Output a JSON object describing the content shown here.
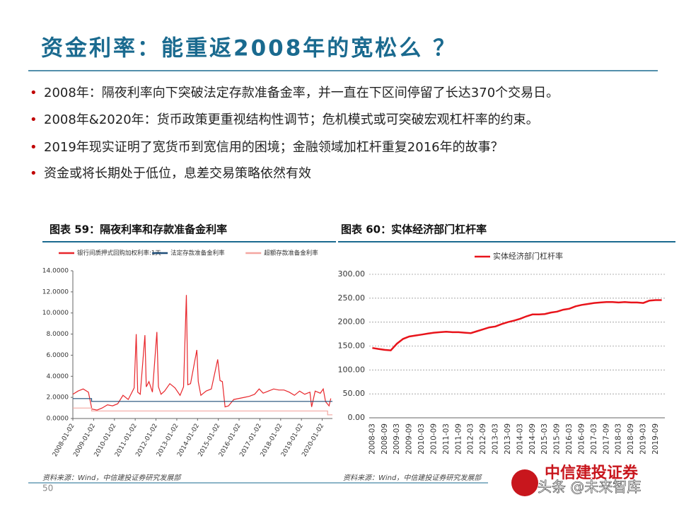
{
  "title": "资金利率：能重返2008年的宽松么 ？",
  "bullets": [
    "2008年：隔夜利率向下突破法定存款准备金率，并一直在下区间停留了长达370个交易日。",
    "2008年&2020年：货币政策更重视结构性调节；危机模式或可突破宏观杠杆率的约束。",
    "2019年现实证明了宽货币到宽信用的困境；金融领域加杠杆重复2016年的故事？",
    "资金或将长期处于低位，息差交易策略依然有效"
  ],
  "page_number": "50",
  "logo": "中信建投证券",
  "watermark": "头条 @未来智库",
  "chart_data": [
    {
      "type": "line",
      "title": "图表 59：隔夜利率和存款准备金利率",
      "source": "资料来源：Wind，中信建投证券研究发展部",
      "legend": "top",
      "grid": false,
      "xlim": [
        "2008-01-02",
        "2020-06-30"
      ],
      "xticks": [
        "2008-01-02",
        "2009-01-02",
        "2010-01-02",
        "2011-01-02",
        "2012-01-02",
        "2013-01-02",
        "2014-01-02",
        "2015-01-02",
        "2016-01-02",
        "2017-01-02",
        "2018-01-02",
        "2019-01-02",
        "2020-01-02"
      ],
      "ylim": [
        0,
        14
      ],
      "yticks": [
        {
          "value": 0,
          "label": "0.0000"
        },
        {
          "value": 2,
          "label": "2.0000"
        },
        {
          "value": 4,
          "label": "4.0000"
        },
        {
          "value": 6,
          "label": "6.0000"
        },
        {
          "value": 8,
          "label": "8.0000"
        },
        {
          "value": 10,
          "label": "10.0000"
        },
        {
          "value": 12,
          "label": "12.0000"
        },
        {
          "value": 14,
          "label": "14.0000"
        }
      ],
      "series": [
        {
          "name": "银行间质押式回购加权利率:1天",
          "color": "#e8262b",
          "x": [
            "2008-01-02",
            "2008-04-01",
            "2008-07-01",
            "2008-10-01",
            "2008-12-01",
            "2009-03-02",
            "2009-06-01",
            "2009-09-01",
            "2009-12-01",
            "2010-03-01",
            "2010-06-01",
            "2010-09-01",
            "2010-12-15",
            "2011-01-20",
            "2011-02-15",
            "2011-04-01",
            "2011-06-22",
            "2011-07-15",
            "2011-09-01",
            "2011-11-01",
            "2012-01-18",
            "2012-02-15",
            "2012-04-01",
            "2012-06-01",
            "2012-09-01",
            "2012-12-01",
            "2013-03-01",
            "2013-05-01",
            "2013-06-20",
            "2013-07-15",
            "2013-09-01",
            "2013-12-20",
            "2014-01-15",
            "2014-03-01",
            "2014-06-01",
            "2014-09-01",
            "2014-12-22",
            "2015-02-01",
            "2015-03-15",
            "2015-05-01",
            "2015-07-01",
            "2015-10-01",
            "2016-01-01",
            "2016-04-01",
            "2016-07-01",
            "2016-10-01",
            "2016-12-20",
            "2017-03-01",
            "2017-06-01",
            "2017-09-01",
            "2017-12-01",
            "2018-03-01",
            "2018-06-01",
            "2018-09-01",
            "2018-12-01",
            "2019-03-01",
            "2019-06-01",
            "2019-07-01",
            "2019-09-01",
            "2019-12-01",
            "2020-01-20",
            "2020-03-01",
            "2020-05-01",
            "2020-06-01"
          ],
          "values": [
            2.3,
            2.6,
            2.8,
            2.5,
            0.9,
            0.8,
            1.0,
            1.3,
            1.2,
            1.4,
            2.2,
            1.8,
            2.9,
            8.0,
            2.5,
            2.3,
            7.9,
            3.0,
            3.5,
            2.5,
            8.2,
            3.0,
            2.3,
            2.6,
            3.3,
            2.9,
            2.2,
            3.0,
            11.7,
            3.2,
            3.3,
            6.5,
            3.5,
            2.2,
            2.6,
            2.8,
            5.6,
            3.6,
            3.5,
            1.1,
            1.2,
            1.8,
            1.9,
            2.0,
            2.1,
            2.3,
            2.8,
            2.4,
            2.6,
            2.8,
            2.7,
            2.7,
            2.5,
            2.2,
            2.6,
            2.3,
            2.5,
            1.1,
            2.6,
            2.4,
            2.8,
            1.6,
            1.2,
            1.9
          ]
        },
        {
          "name": "法定存款准备金利率",
          "color": "#1f4e79",
          "x": [
            "2008-01-02",
            "2008-11-26",
            "2008-11-27",
            "2020-06-30"
          ],
          "values": [
            1.89,
            1.89,
            1.62,
            1.62
          ]
        },
        {
          "name": "超额存款准备金利率",
          "color": "#f4a6a0",
          "x": [
            "2008-01-02",
            "2008-11-26",
            "2008-11-27",
            "2020-04-06",
            "2020-04-07",
            "2020-06-30"
          ],
          "values": [
            0.99,
            0.99,
            0.72,
            0.72,
            0.35,
            0.35
          ]
        }
      ]
    },
    {
      "type": "line",
      "title": "图表 60：实体经济部门杠杆率",
      "source": "资料来源：Wind，中信建投证券研究发展部",
      "legend": "top",
      "grid": true,
      "categories": [
        "2008-03",
        null,
        "2008-09",
        null,
        "2009-03",
        null,
        "2009-09",
        null,
        "2010-03",
        null,
        "2010-09",
        null,
        "2011-03",
        null,
        "2011-09",
        null,
        "2012-03",
        null,
        "2012-09",
        null,
        "2013-03",
        null,
        "2013-09",
        null,
        "2014-03",
        null,
        "2014-09",
        null,
        "2015-03",
        null,
        "2015-09",
        null,
        "2016-03",
        null,
        "2016-09",
        null,
        "2017-03",
        null,
        "2017-09",
        null,
        "2018-03",
        null,
        "2018-09",
        null,
        "2019-03",
        null,
        "2019-09",
        null
      ],
      "ylim": [
        0,
        300
      ],
      "yticks": [
        {
          "value": 0,
          "label": "0.00"
        },
        {
          "value": 50,
          "label": "50.00"
        },
        {
          "value": 100,
          "label": "100.00"
        },
        {
          "value": 150,
          "label": "150.00"
        },
        {
          "value": 200,
          "label": "200.00"
        },
        {
          "value": 250,
          "label": "250.00"
        },
        {
          "value": 300,
          "label": "300.00"
        }
      ],
      "series": [
        {
          "name": "实体经济部门杠杆率",
          "color": "#e8141b",
          "values": [
            146,
            144,
            142,
            141,
            155,
            165,
            170,
            172,
            174,
            176,
            178,
            179,
            180,
            179,
            179,
            178,
            177,
            181,
            185,
            189,
            191,
            196,
            200,
            203,
            207,
            212,
            216,
            216,
            217,
            220,
            222,
            226,
            228,
            233,
            236,
            238,
            240,
            241,
            242,
            242,
            241,
            242,
            241,
            241,
            240,
            245,
            246,
            246
          ]
        }
      ]
    }
  ]
}
